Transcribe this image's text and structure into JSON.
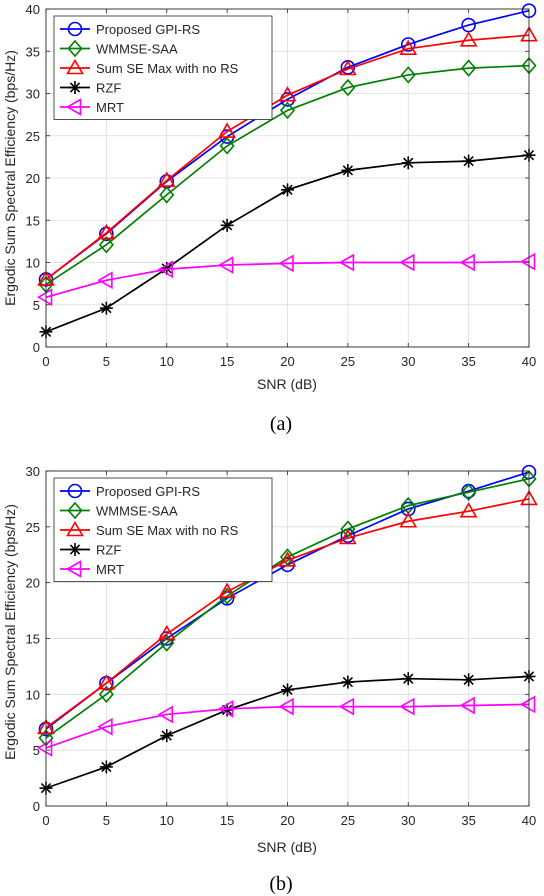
{
  "chart_data": [
    {
      "type": "line",
      "caption": "(a)",
      "xlabel": "SNR (dB)",
      "ylabel": "Ergodic Sum Spectral Efficiency (bps/Hz)",
      "x": [
        0,
        5,
        10,
        15,
        20,
        25,
        30,
        35,
        40
      ],
      "xlim": [
        0,
        40
      ],
      "ylim": [
        0,
        40
      ],
      "xticks": [
        0,
        5,
        10,
        15,
        20,
        25,
        30,
        35,
        40
      ],
      "yticks": [
        0,
        5,
        10,
        15,
        20,
        25,
        30,
        35,
        40
      ],
      "grid": true,
      "legend_position": "top-left",
      "series": [
        {
          "name": "Proposed GPI-RS",
          "color": "#0000ff",
          "marker": "circle",
          "values": [
            8.0,
            13.4,
            19.6,
            24.9,
            29.3,
            33.1,
            35.8,
            38.1,
            39.8
          ]
        },
        {
          "name": "WMMSE-SAA",
          "color": "#008000",
          "marker": "diamond",
          "values": [
            7.4,
            12.1,
            18.0,
            23.8,
            28.0,
            30.7,
            32.2,
            33.0,
            33.3
          ]
        },
        {
          "name": "Sum SE Max with no RS",
          "color": "#ff0000",
          "marker": "triangle-up",
          "values": [
            8.0,
            13.5,
            19.7,
            25.5,
            29.8,
            32.9,
            35.3,
            36.3,
            36.9
          ]
        },
        {
          "name": "RZF",
          "color": "#000000",
          "marker": "asterisk",
          "values": [
            1.8,
            4.6,
            9.3,
            14.4,
            18.6,
            20.9,
            21.8,
            22.0,
            22.7
          ]
        },
        {
          "name": "MRT",
          "color": "#ff00ff",
          "marker": "triangle-left",
          "values": [
            5.9,
            7.9,
            9.2,
            9.7,
            9.9,
            10.0,
            10.0,
            10.0,
            10.1
          ]
        }
      ]
    },
    {
      "type": "line",
      "caption": "(b)",
      "xlabel": "SNR (dB)",
      "ylabel": "Ergodic Sum Spectral Efficiency (bps/Hz)",
      "x": [
        0,
        5,
        10,
        15,
        20,
        25,
        30,
        35,
        40
      ],
      "xlim": [
        0,
        40
      ],
      "ylim": [
        0,
        30
      ],
      "xticks": [
        0,
        5,
        10,
        15,
        20,
        25,
        30,
        35,
        40
      ],
      "yticks": [
        0,
        5,
        10,
        15,
        20,
        25,
        30
      ],
      "grid": true,
      "legend_position": "top-left",
      "series": [
        {
          "name": "Proposed GPI-RS",
          "color": "#0000ff",
          "marker": "circle",
          "values": [
            6.9,
            11.0,
            15.0,
            18.6,
            21.6,
            24.2,
            26.6,
            28.2,
            29.9
          ]
        },
        {
          "name": "WMMSE-SAA",
          "color": "#008000",
          "marker": "diamond",
          "values": [
            6.1,
            10.0,
            14.6,
            18.8,
            22.3,
            24.8,
            26.9,
            28.1,
            29.3
          ]
        },
        {
          "name": "Sum SE Max with no RS",
          "color": "#ff0000",
          "marker": "triangle-up",
          "values": [
            7.0,
            11.0,
            15.4,
            19.2,
            22.0,
            24.0,
            25.5,
            26.4,
            27.5
          ]
        },
        {
          "name": "RZF",
          "color": "#000000",
          "marker": "asterisk",
          "values": [
            1.6,
            3.5,
            6.3,
            8.6,
            10.4,
            11.1,
            11.4,
            11.3,
            11.6
          ]
        },
        {
          "name": "MRT",
          "color": "#ff00ff",
          "marker": "triangle-left",
          "values": [
            5.2,
            7.1,
            8.2,
            8.7,
            8.9,
            8.9,
            8.9,
            9.0,
            9.1
          ]
        }
      ]
    }
  ]
}
